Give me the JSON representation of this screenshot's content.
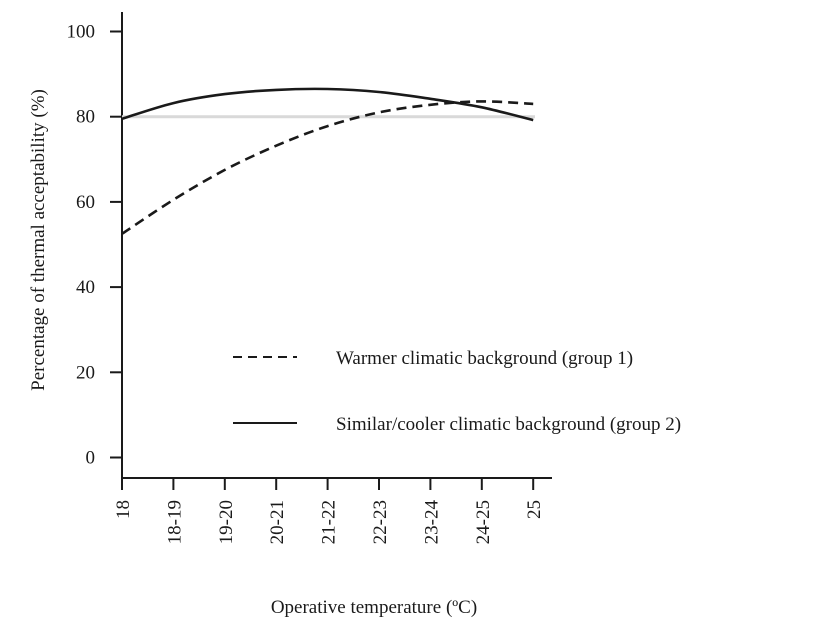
{
  "chart_data": {
    "type": "line",
    "title": "",
    "xlabel": "Operative temperature (ºC)",
    "ylabel": "Percentage of thermal acceptability (%)",
    "categories": [
      "18",
      "18-19",
      "19-20",
      "20-21",
      "21-22",
      "22-23",
      "23-24",
      "24-25",
      "25"
    ],
    "ylim": [
      0,
      100
    ],
    "yticks": [
      "0",
      "20",
      "40",
      "60",
      "80",
      "100"
    ],
    "grid": false,
    "legend_position": "center-right",
    "reference_line": {
      "y": 80,
      "color": "#d9d9d9"
    },
    "series": [
      {
        "name": "Warmer climatic background (group 1)",
        "style": "dashed",
        "color": "#1a1a1a",
        "values": [
          52.5,
          60.5,
          67.5,
          73.2,
          77.8,
          81.0,
          82.8,
          83.6,
          83.0
        ]
      },
      {
        "name": "Similar/cooler climatic background (group 2)",
        "style": "solid",
        "color": "#1a1a1a",
        "values": [
          79.5,
          83.2,
          85.3,
          86.3,
          86.5,
          85.8,
          84.2,
          82.2,
          79.2
        ]
      }
    ]
  }
}
